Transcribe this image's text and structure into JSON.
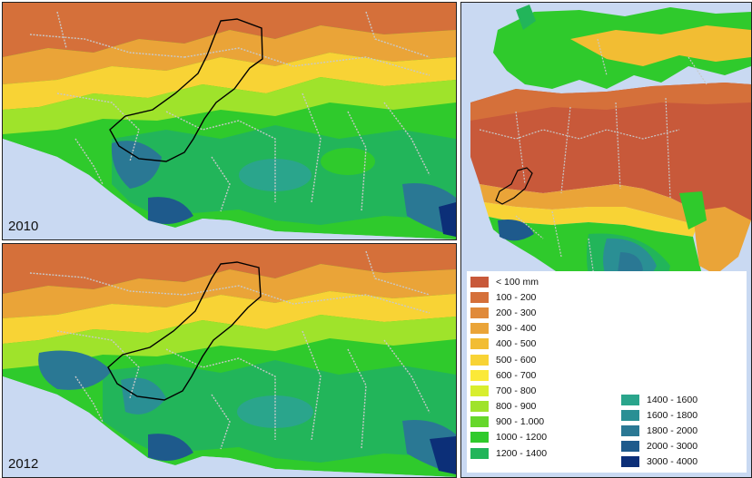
{
  "panels": {
    "top_left": {
      "year": "2010"
    },
    "bottom_left": {
      "year": "2012"
    }
  },
  "legend": {
    "column1": [
      {
        "label": "< 100 mm",
        "color": "#c8593a"
      },
      {
        "label": "100 - 200",
        "color": "#d5703a"
      },
      {
        "label": "200 - 300",
        "color": "#e08a3a"
      },
      {
        "label": "300 - 400",
        "color": "#eaa438"
      },
      {
        "label": "400 - 500",
        "color": "#f2bd33"
      },
      {
        "label": "500 - 600",
        "color": "#f8d335"
      },
      {
        "label": "600 - 700",
        "color": "#fbe938"
      },
      {
        "label": "700 - 800",
        "color": "#d8ee2e"
      },
      {
        "label": "800 - 900",
        "color": "#9fe32b"
      },
      {
        "label": "900 - 1.000",
        "color": "#66d72b"
      },
      {
        "label": "1000 - 1200",
        "color": "#2fca2c"
      },
      {
        "label": "1200 - 1400",
        "color": "#22b55a"
      }
    ],
    "column2": [
      {
        "label": "1400 - 1600",
        "color": "#2aa58c"
      },
      {
        "label": "1600 - 1800",
        "color": "#2a8f94"
      },
      {
        "label": "1800 - 2000",
        "color": "#2a7894"
      },
      {
        "label": "2000 - 3000",
        "color": "#1e5a8c"
      },
      {
        "label": "3000 - 4000",
        "color": "#0c2f78"
      }
    ]
  }
}
